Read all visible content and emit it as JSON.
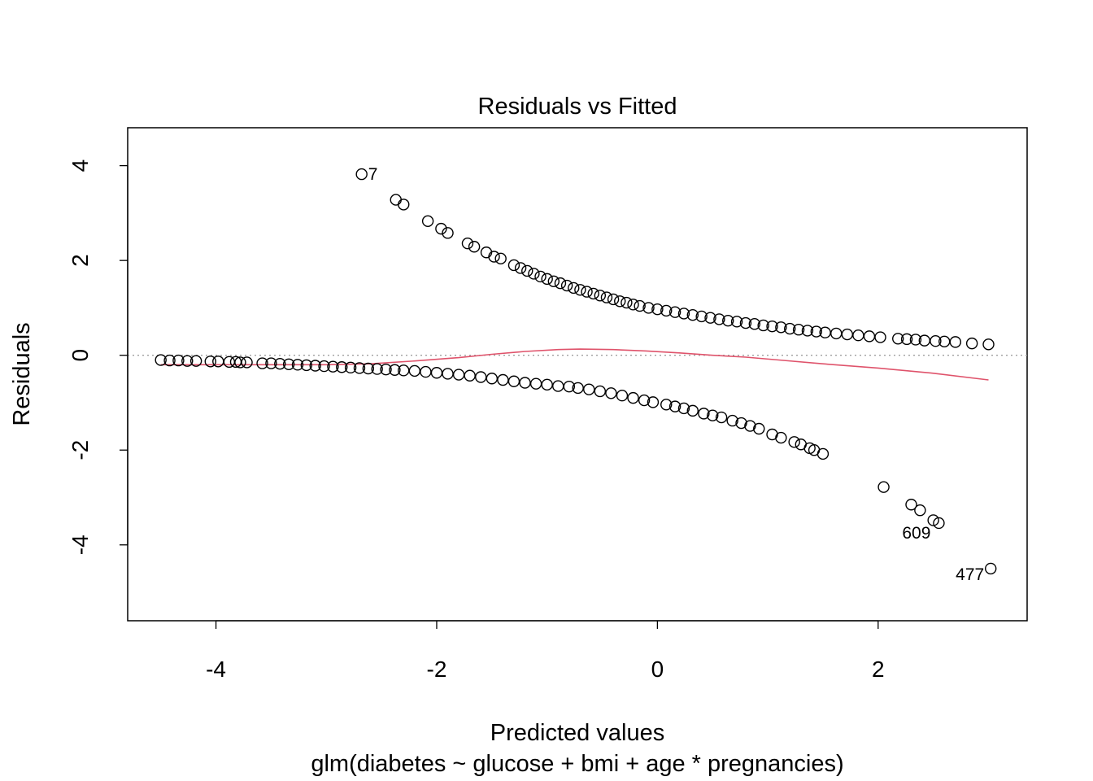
{
  "chart_data": {
    "type": "scatter",
    "title": "Residuals vs Fitted",
    "xlabel": "Predicted values",
    "subtitle": "glm(diabetes ~ glucose + bmi + age * pregnancies)",
    "ylabel": "Residuals",
    "xlim": [
      -4.8,
      3.35
    ],
    "ylim": [
      -5.6,
      4.8
    ],
    "xticks": [
      -4,
      -2,
      0,
      2
    ],
    "xtick_labels": [
      "-4",
      "-2",
      "0",
      "2"
    ],
    "yticks": [
      -4,
      -2,
      0,
      2,
      4
    ],
    "ytick_labels": [
      "-4",
      "-2",
      "0",
      "2",
      "4"
    ],
    "grid": false,
    "reference_line": {
      "y": 0,
      "style": "dotted",
      "color": "#9e9e9e"
    },
    "smooth_color": "#df536b",
    "point_color": "#000000",
    "upper_branch": [
      [
        -2.68,
        3.82
      ],
      [
        -2.37,
        3.28
      ],
      [
        -2.3,
        3.18
      ],
      [
        -2.08,
        2.83
      ],
      [
        -1.96,
        2.67
      ],
      [
        -1.9,
        2.58
      ],
      [
        -1.72,
        2.36
      ],
      [
        -1.66,
        2.29
      ],
      [
        -1.55,
        2.17
      ],
      [
        -1.48,
        2.08
      ],
      [
        -1.42,
        2.04
      ],
      [
        -1.3,
        1.9
      ],
      [
        -1.24,
        1.84
      ],
      [
        -1.18,
        1.78
      ],
      [
        -1.12,
        1.72
      ],
      [
        -1.06,
        1.66
      ],
      [
        -1.0,
        1.61
      ],
      [
        -0.94,
        1.56
      ],
      [
        -0.88,
        1.52
      ],
      [
        -0.82,
        1.47
      ],
      [
        -0.76,
        1.42
      ],
      [
        -0.7,
        1.38
      ],
      [
        -0.64,
        1.34
      ],
      [
        -0.58,
        1.3
      ],
      [
        -0.52,
        1.26
      ],
      [
        -0.46,
        1.22
      ],
      [
        -0.4,
        1.18
      ],
      [
        -0.34,
        1.14
      ],
      [
        -0.28,
        1.11
      ],
      [
        -0.22,
        1.07
      ],
      [
        -0.16,
        1.04
      ],
      [
        -0.08,
        1.0
      ],
      [
        0.0,
        0.97
      ],
      [
        0.08,
        0.94
      ],
      [
        0.16,
        0.91
      ],
      [
        0.24,
        0.88
      ],
      [
        0.32,
        0.85
      ],
      [
        0.4,
        0.82
      ],
      [
        0.48,
        0.79
      ],
      [
        0.56,
        0.76
      ],
      [
        0.64,
        0.73
      ],
      [
        0.72,
        0.71
      ],
      [
        0.8,
        0.68
      ],
      [
        0.88,
        0.66
      ],
      [
        0.96,
        0.63
      ],
      [
        1.04,
        0.61
      ],
      [
        1.12,
        0.59
      ],
      [
        1.2,
        0.56
      ],
      [
        1.28,
        0.54
      ],
      [
        1.36,
        0.52
      ],
      [
        1.44,
        0.5
      ],
      [
        1.52,
        0.48
      ],
      [
        1.62,
        0.46
      ],
      [
        1.72,
        0.44
      ],
      [
        1.82,
        0.42
      ],
      [
        1.92,
        0.4
      ],
      [
        2.02,
        0.38
      ],
      [
        2.18,
        0.35
      ],
      [
        2.26,
        0.34
      ],
      [
        2.34,
        0.33
      ],
      [
        2.42,
        0.31
      ],
      [
        2.52,
        0.3
      ],
      [
        2.6,
        0.29
      ],
      [
        2.7,
        0.28
      ],
      [
        2.85,
        0.25
      ],
      [
        3.0,
        0.23
      ]
    ],
    "lower_branch": [
      [
        -4.5,
        -0.1
      ],
      [
        -4.42,
        -0.11
      ],
      [
        -4.34,
        -0.11
      ],
      [
        -4.26,
        -0.12
      ],
      [
        -4.18,
        -0.12
      ],
      [
        -4.05,
        -0.13
      ],
      [
        -3.98,
        -0.13
      ],
      [
        -3.88,
        -0.14
      ],
      [
        -3.82,
        -0.14
      ],
      [
        -3.78,
        -0.15
      ],
      [
        -3.72,
        -0.15
      ],
      [
        -3.58,
        -0.17
      ],
      [
        -3.5,
        -0.17
      ],
      [
        -3.42,
        -0.18
      ],
      [
        -3.34,
        -0.19
      ],
      [
        -3.26,
        -0.2
      ],
      [
        -3.18,
        -0.21
      ],
      [
        -3.1,
        -0.22
      ],
      [
        -3.02,
        -0.23
      ],
      [
        -2.94,
        -0.24
      ],
      [
        -2.86,
        -0.25
      ],
      [
        -2.78,
        -0.26
      ],
      [
        -2.7,
        -0.27
      ],
      [
        -2.62,
        -0.28
      ],
      [
        -2.54,
        -0.29
      ],
      [
        -2.46,
        -0.3
      ],
      [
        -2.38,
        -0.31
      ],
      [
        -2.3,
        -0.32
      ],
      [
        -2.2,
        -0.33
      ],
      [
        -2.1,
        -0.35
      ],
      [
        -2.0,
        -0.37
      ],
      [
        -1.9,
        -0.39
      ],
      [
        -1.8,
        -0.41
      ],
      [
        -1.7,
        -0.43
      ],
      [
        -1.6,
        -0.46
      ],
      [
        -1.5,
        -0.49
      ],
      [
        -1.4,
        -0.52
      ],
      [
        -1.3,
        -0.55
      ],
      [
        -1.2,
        -0.58
      ],
      [
        -1.1,
        -0.6
      ],
      [
        -1.0,
        -0.62
      ],
      [
        -0.9,
        -0.65
      ],
      [
        -0.8,
        -0.66
      ],
      [
        -0.72,
        -0.69
      ],
      [
        -0.62,
        -0.72
      ],
      [
        -0.52,
        -0.76
      ],
      [
        -0.42,
        -0.8
      ],
      [
        -0.32,
        -0.85
      ],
      [
        -0.22,
        -0.9
      ],
      [
        -0.12,
        -0.95
      ],
      [
        -0.04,
        -0.99
      ],
      [
        0.08,
        -1.04
      ],
      [
        0.16,
        -1.08
      ],
      [
        0.24,
        -1.12
      ],
      [
        0.32,
        -1.17
      ],
      [
        0.42,
        -1.23
      ],
      [
        0.5,
        -1.27
      ],
      [
        0.58,
        -1.31
      ],
      [
        0.68,
        -1.38
      ],
      [
        0.76,
        -1.43
      ],
      [
        0.84,
        -1.49
      ],
      [
        0.92,
        -1.55
      ],
      [
        1.04,
        -1.67
      ],
      [
        1.12,
        -1.74
      ],
      [
        1.24,
        -1.83
      ],
      [
        1.3,
        -1.88
      ],
      [
        1.38,
        -1.96
      ],
      [
        1.42,
        -2.0
      ],
      [
        1.5,
        -2.08
      ],
      [
        2.05,
        -2.78
      ],
      [
        2.3,
        -3.15
      ],
      [
        2.38,
        -3.27
      ],
      [
        2.5,
        -3.48
      ],
      [
        2.55,
        -3.54
      ],
      [
        3.02,
        -4.5
      ]
    ],
    "smooth_line": [
      [
        -4.5,
        -0.2
      ],
      [
        -4.0,
        -0.2
      ],
      [
        -3.5,
        -0.2
      ],
      [
        -3.0,
        -0.2
      ],
      [
        -2.6,
        -0.18
      ],
      [
        -2.2,
        -0.12
      ],
      [
        -1.8,
        -0.05
      ],
      [
        -1.5,
        0.02
      ],
      [
        -1.2,
        0.08
      ],
      [
        -0.9,
        0.12
      ],
      [
        -0.7,
        0.13
      ],
      [
        -0.4,
        0.12
      ],
      [
        -0.1,
        0.09
      ],
      [
        0.2,
        0.05
      ],
      [
        0.5,
        0.0
      ],
      [
        0.8,
        -0.04
      ],
      [
        1.1,
        -0.1
      ],
      [
        1.5,
        -0.18
      ],
      [
        2.0,
        -0.27
      ],
      [
        2.5,
        -0.38
      ],
      [
        3.0,
        -0.52
      ]
    ],
    "annotations": [
      {
        "label": "7",
        "x": -2.68,
        "y": 3.82,
        "position": "right"
      },
      {
        "label": "609",
        "x": 2.55,
        "y": -3.54,
        "position": "bottom-left"
      },
      {
        "label": "477",
        "x": 3.02,
        "y": -4.5,
        "position": "left"
      }
    ]
  }
}
